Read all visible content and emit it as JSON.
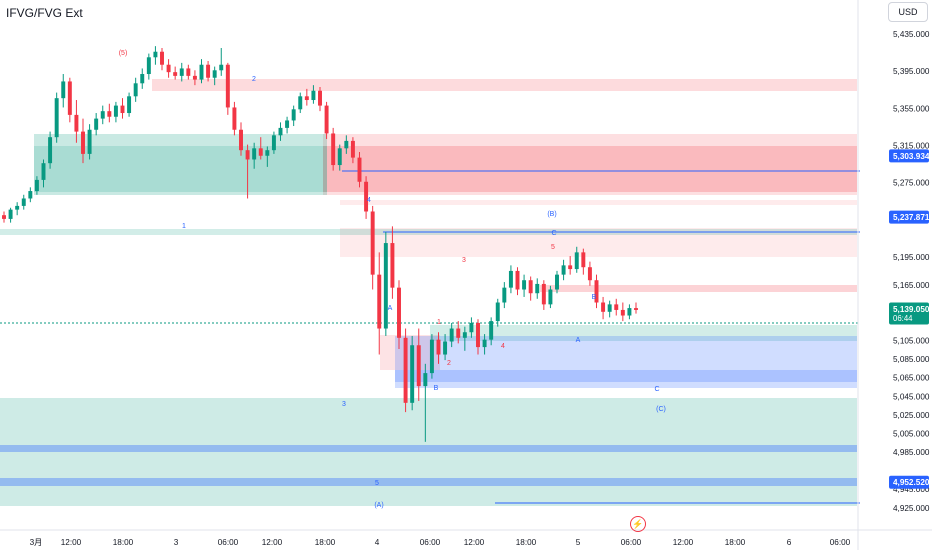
{
  "header": {
    "title": "IFVG/FVG Ext",
    "currency": "USD"
  },
  "chart_data": {
    "type": "candlestick",
    "title": "IFVG/FVG Ext",
    "currency": "USD",
    "y_axis": {
      "ticks": [
        5435,
        5395,
        5355,
        5315,
        5275,
        5195,
        5165,
        5105,
        5085,
        5065,
        5045,
        5025,
        5005,
        4985,
        4945,
        4925
      ],
      "tick_labels": [
        "5,435.000",
        "5,395.000",
        "5,355.000",
        "5,315.000",
        "5,275.000",
        "5,195.000",
        "5,165.000",
        "5,105.000",
        "5,085.000",
        "5,065.000",
        "5,045.000",
        "5,025.000",
        "5,005.000",
        "4,985.000",
        "4,945.000",
        "4,925.000"
      ],
      "ylim": [
        4920,
        5460
      ]
    },
    "x_axis": {
      "tick_labels": [
        "3月",
        "12:00",
        "18:00",
        "3",
        "06:00",
        "12:00",
        "18:00",
        "4",
        "06:00",
        "12:00",
        "18:00",
        "5",
        "06:00",
        "12:00",
        "18:00",
        "6",
        "06:00"
      ]
    },
    "price_labels": [
      {
        "text": "5,303.934",
        "value": 5303.934,
        "style": "blue"
      },
      {
        "text": "5,237.871",
        "value": 5237.871,
        "style": "blue"
      },
      {
        "text": "5,139.050",
        "value": 5139.05,
        "style": "green",
        "sub": "06:44"
      },
      {
        "text": "4,952.520",
        "value": 4952.52,
        "style": "blue"
      }
    ],
    "wave_labels": [
      {
        "text": "(5)",
        "color": "#f23645"
      },
      {
        "text": "2",
        "color": "#2962ff"
      },
      {
        "text": "1",
        "color": "#2962ff"
      },
      {
        "text": "4",
        "color": "#2962ff"
      },
      {
        "text": "3",
        "color": "#2962ff"
      },
      {
        "text": "5",
        "color": "#2962ff"
      },
      {
        "text": "(A)",
        "color": "#2962ff"
      },
      {
        "text": "A",
        "color": "#2962ff"
      },
      {
        "text": "B",
        "color": "#2962ff"
      },
      {
        "text": "1",
        "color": "#f23645"
      },
      {
        "text": "2",
        "color": "#f23645"
      },
      {
        "text": "3",
        "color": "#f23645"
      },
      {
        "text": "4",
        "color": "#f23645"
      },
      {
        "text": "5",
        "color": "#f23645"
      },
      {
        "text": "(B)",
        "color": "#2962ff"
      },
      {
        "text": "C",
        "color": "#2962ff"
      },
      {
        "text": "B",
        "color": "#2962ff"
      },
      {
        "text": "A",
        "color": "#2962ff"
      },
      {
        "text": "C",
        "color": "#2962ff"
      },
      {
        "text": "(C)",
        "color": "#2962ff"
      }
    ],
    "zones": [
      {
        "type": "bearish-fvg",
        "color": "#f23645"
      },
      {
        "type": "bullish-fvg",
        "color": "#089981"
      },
      {
        "type": "bullish-ifvg",
        "color": "#2962ff"
      }
    ],
    "series": [
      {
        "name": "",
        "candles": [
          [
            5240,
            5244,
            5232,
            5236
          ],
          [
            5236,
            5248,
            5232,
            5246
          ],
          [
            5246,
            5254,
            5240,
            5250
          ],
          [
            5250,
            5262,
            5246,
            5258
          ],
          [
            5258,
            5270,
            5254,
            5266
          ],
          [
            5266,
            5282,
            5262,
            5278
          ],
          [
            5278,
            5300,
            5270,
            5296
          ],
          [
            5296,
            5330,
            5290,
            5324
          ],
          [
            5324,
            5372,
            5318,
            5366
          ],
          [
            5366,
            5392,
            5356,
            5384
          ],
          [
            5384,
            5388,
            5340,
            5348
          ],
          [
            5348,
            5364,
            5318,
            5330
          ],
          [
            5330,
            5344,
            5296,
            5306
          ],
          [
            5306,
            5338,
            5300,
            5332
          ],
          [
            5332,
            5350,
            5326,
            5344
          ],
          [
            5344,
            5358,
            5338,
            5352
          ],
          [
            5352,
            5360,
            5340,
            5346
          ],
          [
            5346,
            5362,
            5340,
            5358
          ],
          [
            5358,
            5366,
            5344,
            5350
          ],
          [
            5350,
            5372,
            5346,
            5368
          ],
          [
            5368,
            5388,
            5362,
            5382
          ],
          [
            5382,
            5398,
            5376,
            5392
          ],
          [
            5392,
            5414,
            5386,
            5410
          ],
          [
            5410,
            5422,
            5402,
            5416
          ],
          [
            5416,
            5420,
            5396,
            5402
          ],
          [
            5402,
            5408,
            5388,
            5394
          ],
          [
            5394,
            5400,
            5386,
            5390
          ],
          [
            5390,
            5404,
            5384,
            5398
          ],
          [
            5398,
            5402,
            5386,
            5390
          ],
          [
            5390,
            5396,
            5380,
            5386
          ],
          [
            5386,
            5408,
            5382,
            5402
          ],
          [
            5402,
            5406,
            5384,
            5388
          ],
          [
            5388,
            5400,
            5380,
            5396
          ],
          [
            5396,
            5420,
            5390,
            5402
          ],
          [
            5402,
            5404,
            5348,
            5356
          ],
          [
            5356,
            5362,
            5326,
            5332
          ],
          [
            5332,
            5340,
            5304,
            5310
          ],
          [
            5310,
            5316,
            5258,
            5300
          ],
          [
            5300,
            5318,
            5290,
            5312
          ],
          [
            5312,
            5324,
            5300,
            5304
          ],
          [
            5304,
            5314,
            5292,
            5310
          ],
          [
            5310,
            5330,
            5306,
            5326
          ],
          [
            5326,
            5340,
            5320,
            5334
          ],
          [
            5334,
            5346,
            5328,
            5342
          ],
          [
            5342,
            5358,
            5336,
            5354
          ],
          [
            5354,
            5372,
            5350,
            5368
          ],
          [
            5368,
            5376,
            5358,
            5364
          ],
          [
            5364,
            5380,
            5360,
            5374
          ],
          [
            5374,
            5378,
            5352,
            5358
          ],
          [
            5358,
            5362,
            5322,
            5328
          ],
          [
            5328,
            5334,
            5288,
            5294
          ],
          [
            5294,
            5316,
            5288,
            5312
          ],
          [
            5312,
            5326,
            5306,
            5320
          ],
          [
            5320,
            5324,
            5296,
            5302
          ],
          [
            5302,
            5308,
            5270,
            5276
          ],
          [
            5276,
            5282,
            5236,
            5244
          ],
          [
            5244,
            5250,
            5160,
            5176
          ],
          [
            5176,
            5200,
            5090,
            5118
          ],
          [
            5118,
            5222,
            5110,
            5210
          ],
          [
            5210,
            5228,
            5150,
            5162
          ],
          [
            5162,
            5170,
            5096,
            5108
          ],
          [
            5108,
            5118,
            5028,
            5038
          ],
          [
            5038,
            5110,
            5030,
            5100
          ],
          [
            5100,
            5118,
            5040,
            5056
          ],
          [
            5056,
            5080,
            4996,
            5070
          ],
          [
            5070,
            5112,
            5064,
            5106
          ],
          [
            5106,
            5114,
            5080,
            5090
          ],
          [
            5090,
            5112,
            5084,
            5104
          ],
          [
            5104,
            5124,
            5098,
            5118
          ],
          [
            5118,
            5126,
            5102,
            5108
          ],
          [
            5108,
            5120,
            5094,
            5114
          ],
          [
            5114,
            5130,
            5108,
            5124
          ],
          [
            5124,
            5128,
            5090,
            5098
          ],
          [
            5098,
            5112,
            5090,
            5106
          ],
          [
            5106,
            5130,
            5100,
            5126
          ],
          [
            5126,
            5150,
            5120,
            5146
          ],
          [
            5146,
            5168,
            5140,
            5162
          ],
          [
            5162,
            5186,
            5156,
            5180
          ],
          [
            5180,
            5184,
            5154,
            5160
          ],
          [
            5160,
            5176,
            5152,
            5170
          ],
          [
            5170,
            5174,
            5148,
            5156
          ],
          [
            5156,
            5172,
            5150,
            5166
          ],
          [
            5166,
            5170,
            5138,
            5144
          ],
          [
            5144,
            5164,
            5140,
            5160
          ],
          [
            5160,
            5180,
            5156,
            5176
          ],
          [
            5176,
            5192,
            5170,
            5186
          ],
          [
            5186,
            5196,
            5176,
            5182
          ],
          [
            5182,
            5206,
            5178,
            5200
          ],
          [
            5200,
            5204,
            5176,
            5184
          ],
          [
            5184,
            5190,
            5164,
            5170
          ],
          [
            5170,
            5176,
            5140,
            5146
          ],
          [
            5146,
            5152,
            5128,
            5136
          ],
          [
            5136,
            5148,
            5130,
            5144
          ],
          [
            5144,
            5150,
            5132,
            5138
          ],
          [
            5138,
            5146,
            5126,
            5132
          ],
          [
            5132,
            5144,
            5128,
            5140
          ],
          [
            5140,
            5146,
            5134,
            5138
          ]
        ]
      }
    ]
  }
}
